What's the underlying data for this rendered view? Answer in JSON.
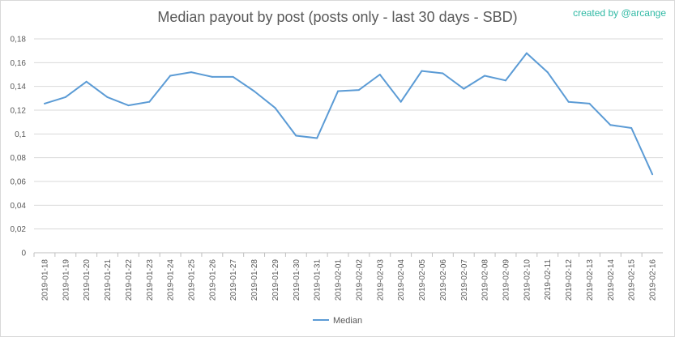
{
  "watermark": "created by @arcange",
  "chart_data": {
    "type": "line",
    "title": "Median payout by post (posts only - last 30 days - SBD)",
    "xlabel": "",
    "ylabel": "",
    "ylim": [
      0,
      0.18
    ],
    "y_ticks": [
      "0",
      "0,02",
      "0,04",
      "0,06",
      "0,08",
      "0,1",
      "0,12",
      "0,14",
      "0,16",
      "0,18"
    ],
    "grid": true,
    "legend_position": "bottom",
    "categories": [
      "2019-01-18",
      "2019-01-19",
      "2019-01-20",
      "2019-01-21",
      "2019-01-22",
      "2019-01-23",
      "2019-01-24",
      "2019-01-25",
      "2019-01-26",
      "2019-01-27",
      "2019-01-28",
      "2019-01-29",
      "2019-01-30",
      "2019-01-31",
      "2019-02-01",
      "2019-02-02",
      "2019-02-03",
      "2019-02-04",
      "2019-02-05",
      "2019-02-06",
      "2019-02-07",
      "2019-02-08",
      "2019-02-09",
      "2019-02-10",
      "2019-02-11",
      "2019-02-12",
      "2019-02-13",
      "2019-02-14",
      "2019-02-15",
      "2019-02-16"
    ],
    "series": [
      {
        "name": "Median",
        "color": "#5b9bd5",
        "values": [
          0.1255,
          0.131,
          0.144,
          0.131,
          0.124,
          0.127,
          0.149,
          0.152,
          0.148,
          0.148,
          0.136,
          0.122,
          0.0985,
          0.0965,
          0.136,
          0.137,
          0.15,
          0.127,
          0.153,
          0.151,
          0.138,
          0.149,
          0.145,
          0.168,
          0.152,
          0.127,
          0.1255,
          0.1075,
          0.105,
          0.066
        ]
      }
    ]
  }
}
